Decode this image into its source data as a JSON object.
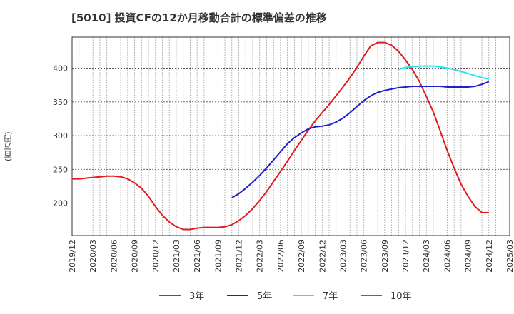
{
  "title": "[5010]  投資CFの12か月移動合計の標準偏差の推移",
  "y_unit": "(百万円)",
  "colors": {
    "3y": "#e31a1c",
    "5y": "#1f1fcc",
    "7y": "#22e5ee",
    "10y": "#2e8b2e"
  },
  "chart_data": {
    "type": "line",
    "title": "[5010]  投資CFの12か月移動合計の標準偏差の推移",
    "xlabel": "",
    "ylabel": "(百万円)",
    "ylim": [
      152,
      446
    ],
    "y_ticks": [
      200,
      250,
      300,
      350,
      400
    ],
    "x_ticks": [
      "2019/12",
      "2020/03",
      "2020/06",
      "2020/09",
      "2020/12",
      "2021/03",
      "2021/06",
      "2021/09",
      "2021/12",
      "2022/03",
      "2022/06",
      "2022/09",
      "2022/12",
      "2023/03",
      "2023/06",
      "2023/09",
      "2023/12",
      "2024/03",
      "2024/06",
      "2024/09",
      "2024/12",
      "2025/03"
    ],
    "grid": true,
    "legend_position": "bottom",
    "series": [
      {
        "name": "3年",
        "color": "#e31a1c",
        "x": [
          "2019/12",
          "2020/01",
          "2020/02",
          "2020/03",
          "2020/04",
          "2020/05",
          "2020/06",
          "2020/07",
          "2020/08",
          "2020/09",
          "2020/10",
          "2020/11",
          "2020/12",
          "2021/01",
          "2021/02",
          "2021/03",
          "2021/04",
          "2021/05",
          "2021/06",
          "2021/07",
          "2021/08",
          "2021/09",
          "2021/10",
          "2021/11",
          "2021/12",
          "2022/01",
          "2022/02",
          "2022/03",
          "2022/04",
          "2022/05",
          "2022/06",
          "2022/07",
          "2022/08",
          "2022/09",
          "2022/10",
          "2022/11",
          "2022/12",
          "2023/01",
          "2023/02",
          "2023/03",
          "2023/04",
          "2023/05",
          "2023/06",
          "2023/07",
          "2023/08",
          "2023/09",
          "2023/10",
          "2023/11",
          "2023/12",
          "2024/01",
          "2024/02",
          "2024/03",
          "2024/04",
          "2024/05",
          "2024/06",
          "2024/07",
          "2024/08",
          "2024/09",
          "2024/10",
          "2024/11",
          "2024/12"
        ],
        "values": [
          236,
          236,
          237,
          238,
          239,
          240,
          240,
          239,
          236,
          230,
          222,
          210,
          195,
          182,
          172,
          165,
          161,
          161,
          163,
          164,
          164,
          164,
          165,
          168,
          174,
          182,
          192,
          204,
          217,
          232,
          247,
          262,
          278,
          293,
          308,
          322,
          334,
          346,
          359,
          372,
          386,
          401,
          418,
          433,
          438,
          438,
          434,
          425,
          412,
          398,
          380,
          358,
          335,
          307,
          278,
          252,
          228,
          210,
          195,
          186,
          186
        ]
      },
      {
        "name": "5年",
        "color": "#1f1fcc",
        "x": [
          "2021/11",
          "2021/12",
          "2022/01",
          "2022/02",
          "2022/03",
          "2022/04",
          "2022/05",
          "2022/06",
          "2022/07",
          "2022/08",
          "2022/09",
          "2022/10",
          "2022/11",
          "2022/12",
          "2023/01",
          "2023/02",
          "2023/03",
          "2023/04",
          "2023/05",
          "2023/06",
          "2023/07",
          "2023/08",
          "2023/09",
          "2023/10",
          "2023/11",
          "2023/12",
          "2024/01",
          "2024/02",
          "2024/03",
          "2024/04",
          "2024/05",
          "2024/06",
          "2024/07",
          "2024/08",
          "2024/09",
          "2024/10",
          "2024/11",
          "2024/12"
        ],
        "values": [
          208,
          214,
          222,
          231,
          241,
          252,
          264,
          276,
          288,
          297,
          304,
          310,
          313,
          314,
          316,
          320,
          326,
          334,
          343,
          352,
          359,
          364,
          367,
          369,
          371,
          372,
          373,
          373,
          373,
          373,
          373,
          372,
          372,
          372,
          372,
          373,
          376,
          380
        ]
      },
      {
        "name": "7年",
        "color": "#22e5ee",
        "x": [
          "2023/11",
          "2023/12",
          "2024/01",
          "2024/02",
          "2024/03",
          "2024/04",
          "2024/05",
          "2024/06",
          "2024/07",
          "2024/08",
          "2024/09",
          "2024/10",
          "2024/11",
          "2024/12"
        ],
        "values": [
          398,
          401,
          402,
          403,
          403,
          403,
          402,
          400,
          398,
          395,
          392,
          389,
          386,
          384
        ]
      },
      {
        "name": "10年",
        "color": "#2e8b2e",
        "x": [],
        "values": []
      }
    ]
  }
}
